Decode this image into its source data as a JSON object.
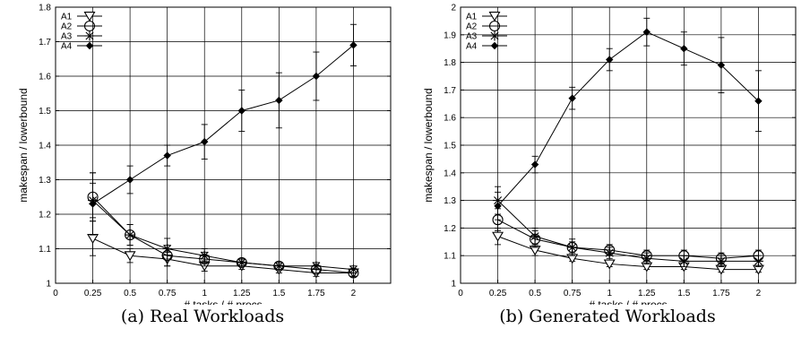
{
  "captions": [
    "(a) Real Workloads",
    "(b) Generated Workloads"
  ],
  "chart_data": [
    {
      "type": "line",
      "title": "",
      "xlabel": "# tasks / # procs",
      "ylabel": "makespan / lowerbound",
      "xlim": [
        0,
        2.25
      ],
      "ylim": [
        1,
        1.8
      ],
      "xticks": [
        0,
        0.25,
        0.5,
        0.75,
        1,
        1.25,
        1.5,
        1.75,
        2
      ],
      "xtick_labels": [
        "0",
        "0.25",
        "0.5",
        "0.75",
        "1",
        "1.25",
        "1.5",
        "1.75",
        "2"
      ],
      "yticks": [
        1,
        1.1,
        1.2,
        1.3,
        1.4,
        1.5,
        1.6,
        1.7,
        1.8
      ],
      "ytick_labels": [
        "1",
        "1.1",
        "1.2",
        "1.3",
        "1.4",
        "1.5",
        "1.6",
        "1.7",
        "1.8"
      ],
      "grid": true,
      "legend": "top-left",
      "x": [
        0.25,
        0.5,
        0.75,
        1,
        1.25,
        1.5,
        1.75,
        2
      ],
      "series": [
        {
          "name": "A1",
          "marker": "triangle-down",
          "values": [
            1.13,
            1.08,
            1.07,
            1.05,
            1.05,
            1.04,
            1.03,
            1.03
          ],
          "err": [
            0.05,
            0.02,
            0.02,
            0.015,
            0.01,
            0.01,
            0.01,
            0.01
          ]
        },
        {
          "name": "A2",
          "marker": "circle",
          "values": [
            1.25,
            1.14,
            1.08,
            1.07,
            1.06,
            1.05,
            1.04,
            1.03
          ],
          "err": [
            0.07,
            0.03,
            0.03,
            0.02,
            0.01,
            0.01,
            0.01,
            0.01
          ]
        },
        {
          "name": "A3",
          "marker": "star",
          "values": [
            1.24,
            1.14,
            1.1,
            1.08,
            1.06,
            1.05,
            1.05,
            1.04
          ],
          "err": [
            0.05,
            0.03,
            0.03,
            0.02,
            0.01,
            0.01,
            0.01,
            0.01
          ]
        },
        {
          "name": "A4",
          "marker": "diamond",
          "values": [
            1.23,
            1.3,
            1.37,
            1.41,
            1.5,
            1.53,
            1.6,
            1.69
          ],
          "err": [
            0.09,
            0.04,
            0.03,
            0.05,
            0.06,
            0.08,
            0.07,
            0.06
          ]
        }
      ]
    },
    {
      "type": "line",
      "title": "",
      "xlabel": "# tasks / # procs",
      "ylabel": "makespan / lowerbound",
      "xlim": [
        0,
        2.25
      ],
      "ylim": [
        1,
        2
      ],
      "xticks": [
        0,
        0.25,
        0.5,
        0.75,
        1,
        1.25,
        1.5,
        1.75,
        2
      ],
      "xtick_labels": [
        "0",
        "0.25",
        "0.5",
        "0.75",
        "1",
        "1.25",
        "1.5",
        "1.75",
        "2"
      ],
      "yticks": [
        1,
        1.1,
        1.2,
        1.3,
        1.4,
        1.5,
        1.6,
        1.7,
        1.8,
        1.9,
        2
      ],
      "ytick_labels": [
        "1",
        "1.1",
        "1.2",
        "1.3",
        "1.4",
        "1.5",
        "1.6",
        "1.7",
        "1.8",
        "1.9",
        "2"
      ],
      "grid": true,
      "legend": "top-left",
      "x": [
        0.25,
        0.5,
        0.75,
        1,
        1.25,
        1.5,
        1.75,
        2
      ],
      "series": [
        {
          "name": "A1",
          "marker": "triangle-down",
          "values": [
            1.17,
            1.12,
            1.09,
            1.07,
            1.06,
            1.06,
            1.05,
            1.05
          ],
          "err": [
            0.03,
            0.02,
            0.01,
            0.01,
            0.01,
            0.01,
            0.01,
            0.01
          ]
        },
        {
          "name": "A2",
          "marker": "circle",
          "values": [
            1.23,
            1.16,
            1.13,
            1.12,
            1.1,
            1.1,
            1.09,
            1.1
          ],
          "err": [
            0.04,
            0.03,
            0.02,
            0.02,
            0.02,
            0.02,
            0.02,
            0.02
          ]
        },
        {
          "name": "A3",
          "marker": "star",
          "values": [
            1.3,
            1.17,
            1.13,
            1.11,
            1.09,
            1.08,
            1.08,
            1.08
          ],
          "err": [
            0.05,
            0.03,
            0.03,
            0.02,
            0.02,
            0.02,
            0.02,
            0.02
          ]
        },
        {
          "name": "A4",
          "marker": "diamond",
          "values": [
            1.28,
            1.43,
            1.67,
            1.81,
            1.91,
            1.85,
            1.79,
            1.66
          ],
          "err": [
            0.05,
            0.03,
            0.04,
            0.04,
            0.05,
            0.06,
            0.1,
            0.11
          ]
        }
      ]
    }
  ]
}
